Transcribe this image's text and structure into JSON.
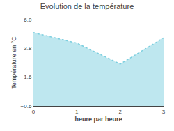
{
  "chart_data": {
    "type": "area",
    "title": "Evolution de la température",
    "xlabel": "heure par heure",
    "ylabel": "Température en °C",
    "x": [
      0,
      1,
      2,
      3
    ],
    "values": [
      5.0,
      4.2,
      2.6,
      4.6
    ],
    "color": "#7dcfdf",
    "line_style": "dotted",
    "xlim": [
      0,
      3
    ],
    "xticks": [
      0,
      1,
      2,
      3
    ],
    "ylim": [
      -0.6,
      6.0
    ],
    "yticks": [
      {
        "value": -0.6,
        "label": "−0.6"
      },
      1.6,
      3.8,
      {
        "value": 6.0,
        "label": "6.0"
      }
    ],
    "grid": false
  }
}
